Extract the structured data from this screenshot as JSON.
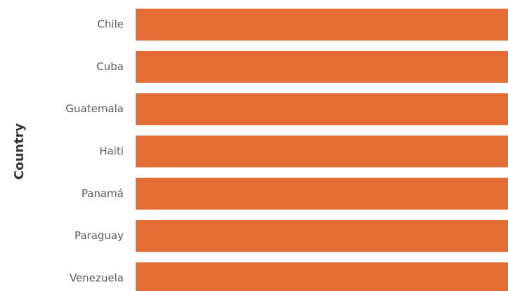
{
  "chart_data": {
    "type": "bar",
    "orientation": "horizontal",
    "y_label": "Country",
    "categories": [
      "Chile",
      "Cuba",
      "Guatemala",
      "Haiti",
      "Panamá",
      "Paraguay",
      "Venezuela"
    ],
    "values": [
      100,
      100,
      100,
      100,
      100,
      100,
      100
    ],
    "color": "#e46c35",
    "xlim": [
      0,
      100
    ]
  }
}
